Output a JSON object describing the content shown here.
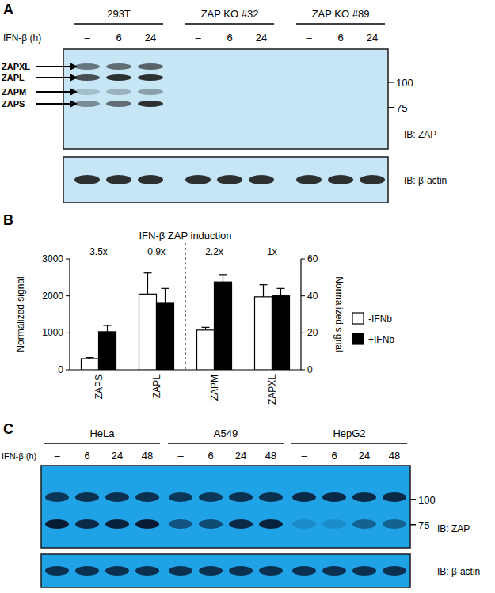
{
  "panel_a": {
    "label": "A",
    "treatment_label": "IFN-β (h)",
    "groups": [
      {
        "name": "293T",
        "lanes": [
          "–",
          "6",
          "24"
        ]
      },
      {
        "name": "ZAP KO #32",
        "lanes": [
          "–",
          "6",
          "24"
        ]
      },
      {
        "name": "ZAP KO #89",
        "lanes": [
          "–",
          "6",
          "24"
        ]
      }
    ],
    "blots": [
      {
        "label": "IB: ZAP",
        "markers": [
          100,
          75
        ],
        "bands": [
          {
            "name": "ZAPXL",
            "intensity": [
              0.55,
              0.6,
              0.65,
              0,
              0,
              0,
              0,
              0,
              0
            ]
          },
          {
            "name": "ZAPL",
            "intensity": [
              0.75,
              0.9,
              0.9,
              0,
              0,
              0,
              0,
              0,
              0
            ]
          },
          {
            "name": "ZAPM",
            "intensity": [
              0.2,
              0.25,
              0.35,
              0,
              0,
              0,
              0,
              0,
              0
            ]
          },
          {
            "name": "ZAPS",
            "intensity": [
              0.45,
              0.6,
              0.9,
              0,
              0,
              0,
              0,
              0,
              0
            ]
          }
        ]
      },
      {
        "label": "IB: β-actin",
        "bands": [
          {
            "intensity": [
              0.9,
              0.9,
              0.9,
              0.9,
              0.9,
              0.9,
              0.9,
              0.9,
              0.9
            ]
          }
        ]
      }
    ]
  },
  "chart_data": {
    "type": "bar",
    "panel_label": "B",
    "title": "IFN-β ZAP induction",
    "y_label": "Normalized signal",
    "y2_label": "Normalized signal",
    "categories": [
      "ZAPS",
      "ZAPL",
      "ZAPM",
      "ZAPXL"
    ],
    "annotations": [
      "3.5x",
      "0.9x",
      "2.2x",
      "1x"
    ],
    "ylim": [
      0,
      3000
    ],
    "yticks": [
      0,
      1000,
      2000,
      3000
    ],
    "y2lim": [
      0,
      60
    ],
    "y2ticks": [
      0,
      20,
      40,
      60
    ],
    "legend": "right",
    "series": [
      {
        "name": "-IFNb",
        "color": "#ffffff",
        "values": [
          300,
          2050,
          null,
          null
        ],
        "error": [
          30,
          570,
          null,
          null
        ]
      },
      {
        "name": "+IFNb",
        "color": "#000000",
        "values": [
          1030,
          1800,
          null,
          null
        ],
        "error": [
          170,
          400,
          null,
          null
        ]
      },
      {
        "name": "-IFNb",
        "color": "#ffffff",
        "axis": "y2",
        "values": [
          null,
          null,
          21.5,
          39.5
        ],
        "error": [
          null,
          null,
          1.5,
          6.5
        ]
      },
      {
        "name": "+IFNb",
        "color": "#000000",
        "axis": "y2",
        "values": [
          null,
          null,
          47.5,
          40
        ],
        "error": [
          null,
          null,
          4,
          4
        ]
      }
    ]
  },
  "panel_c": {
    "label": "C",
    "treatment_label": "IFN-β (h)",
    "groups": [
      {
        "name": "HeLa",
        "lanes": [
          "–",
          "6",
          "24",
          "48"
        ]
      },
      {
        "name": "A549",
        "lanes": [
          "–",
          "6",
          "24",
          "48"
        ]
      },
      {
        "name": "HepG2",
        "lanes": [
          "–",
          "6",
          "24",
          "48"
        ]
      }
    ],
    "blots": [
      {
        "label": "IB: ZAP",
        "markers": [
          100,
          75
        ],
        "bands": [
          {
            "intensity": [
              0.75,
              0.8,
              0.8,
              0.8,
              0.75,
              0.75,
              0.8,
              0.8,
              0.85,
              0.85,
              0.85,
              0.85
            ]
          },
          {
            "intensity": [
              0.95,
              0.85,
              0.9,
              0.95,
              0.55,
              0.6,
              0.85,
              0.9,
              0.15,
              0.15,
              0.45,
              0.45
            ]
          }
        ]
      },
      {
        "label": "IB: β-actin",
        "bands": [
          {
            "intensity": [
              0.8,
              0.8,
              0.8,
              0.8,
              0.8,
              0.8,
              0.8,
              0.8,
              0.8,
              0.8,
              0.8,
              0.8
            ]
          }
        ]
      }
    ]
  }
}
